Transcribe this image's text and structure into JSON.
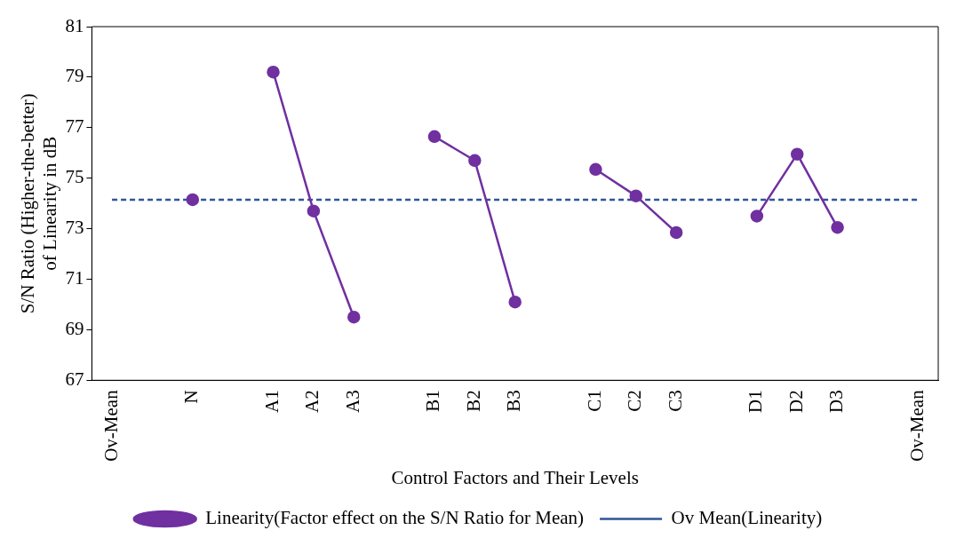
{
  "chart_data": {
    "type": "line",
    "xlabel": "Control Factors and Their Levels",
    "ylabel": "S/N Ratio (Higher-the-better) of Linearity in dB",
    "categories": [
      "Ov-Mean",
      null,
      "N",
      null,
      "A1",
      "A2",
      "A3",
      null,
      "B1",
      "B2",
      "B3",
      null,
      "C1",
      "C2",
      "C3",
      null,
      "D1",
      "D2",
      "D3",
      null,
      "Ov-Mean"
    ],
    "series": [
      {
        "name": "Linearity(Factor effect on the S/N Ratio for Mean)",
        "color": "#7030a0",
        "marker": "circle",
        "line_style": "solid",
        "values": [
          null,
          null,
          74.15,
          null,
          79.2,
          73.7,
          69.5,
          null,
          76.65,
          75.7,
          70.1,
          null,
          75.35,
          74.3,
          72.85,
          null,
          73.5,
          75.95,
          73.05,
          null,
          null
        ]
      },
      {
        "name": "Ov Mean(Linearity)",
        "color": "#2e5597",
        "marker": "none",
        "line_style": "dashed",
        "values": [
          74.15,
          74.15,
          74.15,
          74.15,
          74.15,
          74.15,
          74.15,
          74.15,
          74.15,
          74.15,
          74.15,
          74.15,
          74.15,
          74.15,
          74.15,
          74.15,
          74.15,
          74.15,
          74.15,
          74.15,
          74.15
        ]
      }
    ],
    "ylim": [
      67,
      81
    ],
    "yticks": [
      67,
      69,
      71,
      73,
      75,
      77,
      79,
      81
    ],
    "grid": false,
    "legend": "bottom"
  }
}
